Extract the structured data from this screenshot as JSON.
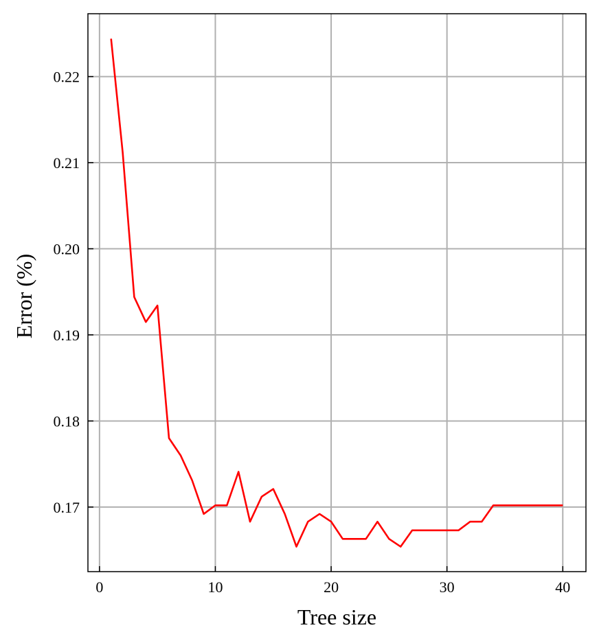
{
  "chart_data": {
    "type": "line",
    "title": "",
    "xlabel": "Tree size",
    "ylabel": "Error (%)",
    "xlim": [
      -1,
      42
    ],
    "ylim": [
      0.1625,
      0.2273
    ],
    "xticks": [
      0,
      10,
      20,
      30,
      40
    ],
    "yticks": [
      0.17,
      0.18,
      0.19,
      0.2,
      0.21,
      0.22
    ],
    "xtick_labels": [
      "0",
      "10",
      "20",
      "30",
      "40"
    ],
    "ytick_labels": [
      "0.17",
      "0.18",
      "0.19",
      "0.20",
      "0.21",
      "0.22"
    ],
    "grid": true,
    "series": [
      {
        "color": "#ff0000",
        "x": [
          1,
          2,
          3,
          4,
          5,
          6,
          7,
          8,
          9,
          10,
          11,
          12,
          13,
          14,
          15,
          16,
          17,
          18,
          19,
          20,
          21,
          22,
          23,
          24,
          25,
          26,
          27,
          28,
          29,
          30,
          31,
          32,
          33,
          34,
          35,
          36,
          37,
          38,
          39,
          40
        ],
        "y": [
          0.2244,
          0.2112,
          0.1944,
          0.1915,
          0.1934,
          0.178,
          0.176,
          0.1731,
          0.1692,
          0.1702,
          0.1702,
          0.1741,
          0.1683,
          0.1712,
          0.1721,
          0.1692,
          0.1654,
          0.1683,
          0.1692,
          0.1683,
          0.1663,
          0.1663,
          0.1663,
          0.1683,
          0.1663,
          0.1654,
          0.1673,
          0.1673,
          0.1673,
          0.1673,
          0.1673,
          0.1683,
          0.1683,
          0.1702,
          0.1702,
          0.1702,
          0.1702,
          0.1702,
          0.1702,
          0.1702
        ]
      }
    ]
  }
}
